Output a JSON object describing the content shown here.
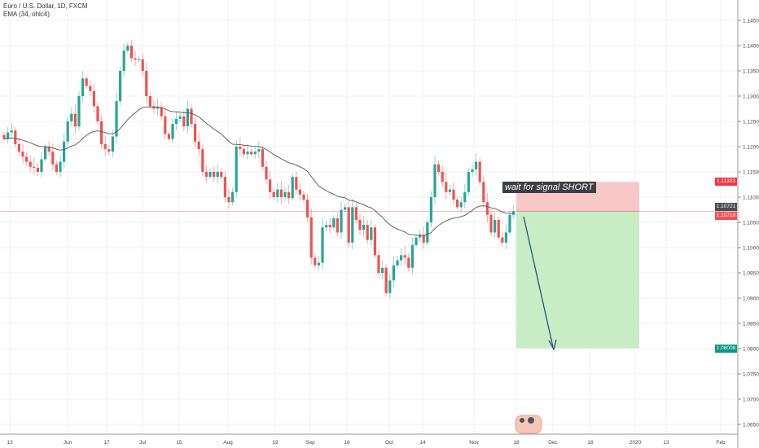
{
  "header": {
    "symbol_title": "Euro / U.S. Dollar, 1D, FXCM",
    "indicator": "EMA (34, ohlc4)"
  },
  "annotation": {
    "text": "wait for signal SHORT"
  },
  "colors": {
    "up": "#26a69a",
    "down": "#ef5350",
    "ema": "#555555",
    "stop_zone": "#f8c8c8",
    "target_zone": "#c8ecc4",
    "arrow": "#2a4d8f",
    "grid": "#eef2f6"
  },
  "price_labels": [
    {
      "name": "stop-price-label",
      "value": "1.11303",
      "price": 1.11303,
      "color": "#f23645"
    },
    {
      "name": "entry-price-label",
      "value": "1.10721",
      "price": 1.10721,
      "color": "#4a4d57"
    },
    {
      "name": "last-price-label",
      "value": "1.10716",
      "price": 1.10716,
      "color": "#ef5350"
    },
    {
      "name": "target-price-label",
      "value": "1.08008",
      "price": 1.08008,
      "color": "#089981"
    }
  ],
  "chart_data": {
    "type": "candlestick",
    "title": "Euro / U.S. Dollar, 1D, FXCM",
    "ylim": [
      1.0625,
      1.1475
    ],
    "y_ticks": [
      "1.14500",
      "1.14000",
      "1.13500",
      "1.13000",
      "1.12500",
      "1.12000",
      "1.11500",
      "1.11000",
      "1.10500",
      "1.10000",
      "1.09500",
      "1.09000",
      "1.08500",
      "1.08000",
      "1.07500",
      "1.07000",
      "1.06500"
    ],
    "x_ticks": [
      "13",
      "Jun",
      "17",
      "Jul",
      "15",
      "Aug",
      "19",
      "Sep",
      "16",
      "Oct",
      "14",
      "Nov",
      "18",
      "Dec",
      "16",
      "2020",
      "13",
      "Feb"
    ],
    "ema_period": 34,
    "closes": [
      1.1215,
      1.1228,
      1.1232,
      1.1205,
      1.119,
      1.118,
      1.117,
      1.116,
      1.1158,
      1.115,
      1.1175,
      1.12,
      1.119,
      1.1165,
      1.115,
      1.117,
      1.121,
      1.125,
      1.1265,
      1.124,
      1.13,
      1.1335,
      1.132,
      1.131,
      1.128,
      1.125,
      1.1205,
      1.1195,
      1.119,
      1.122,
      1.129,
      1.135,
      1.139,
      1.14,
      1.1375,
      1.1372,
      1.1373,
      1.135,
      1.13,
      1.128,
      1.1275,
      1.1278,
      1.126,
      1.1225,
      1.1215,
      1.1245,
      1.1255,
      1.126,
      1.124,
      1.1275,
      1.1245,
      1.121,
      1.1195,
      1.115,
      1.114,
      1.115,
      1.114,
      1.115,
      1.114,
      1.11,
      1.109,
      1.111,
      1.12,
      1.1195,
      1.1185,
      1.119,
      1.1185,
      1.119,
      1.1195,
      1.116,
      1.1135,
      1.111,
      1.11,
      1.1115,
      1.11,
      1.111,
      1.1098,
      1.114,
      1.1115,
      1.1105,
      1.1095,
      1.106,
      1.098,
      1.0965,
      1.097,
      1.104,
      1.1045,
      1.104,
      1.1058,
      1.103,
      1.1075,
      1.108,
      1.101,
      1.108,
      1.1055,
      1.1035,
      1.1045,
      1.1015,
      1.104,
      1.0985,
      1.095,
      1.096,
      1.091,
      1.0935,
      1.0965,
      1.0975,
      1.0985,
      1.098,
      1.096,
      1.1005,
      1.102,
      1.1025,
      1.101,
      1.105,
      1.11,
      1.1165,
      1.115,
      1.113,
      1.111,
      1.1115,
      1.1095,
      1.108,
      1.109,
      1.111,
      1.115,
      1.1155,
      1.117,
      1.113,
      1.109,
      1.1065,
      1.103,
      1.1055,
      1.102,
      1.101,
      1.103,
      1.1065,
      1.1072
    ],
    "short_position": {
      "entry": 1.10721,
      "stop": 1.11303,
      "target": 1.08008
    }
  }
}
